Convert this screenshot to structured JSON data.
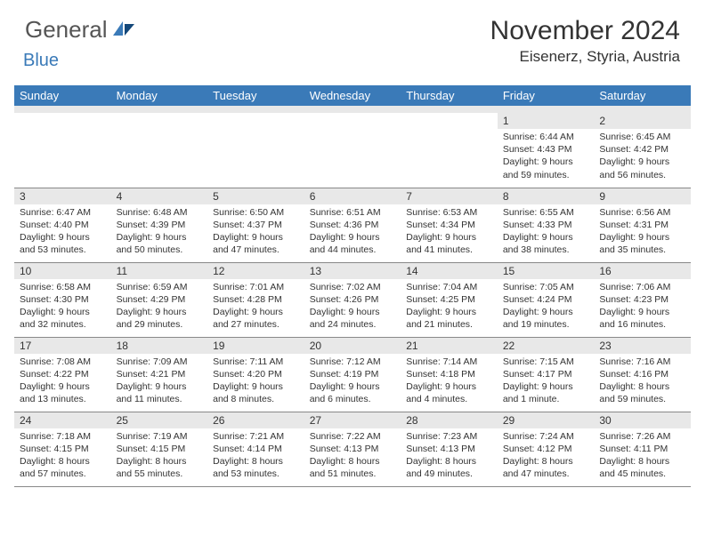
{
  "logo": {
    "general": "General",
    "blue": "Blue"
  },
  "title": "November 2024",
  "location": "Eisenerz, Styria, Austria",
  "colors": {
    "header_bg": "#3a7ab8",
    "header_fg": "#ffffff",
    "band_bg": "#e8e8e8",
    "text": "#333333",
    "border": "#888888",
    "page_bg": "#ffffff",
    "logo_blue": "#3a7ab8",
    "logo_dark": "#14487a"
  },
  "weekdays": [
    "Sunday",
    "Monday",
    "Tuesday",
    "Wednesday",
    "Thursday",
    "Friday",
    "Saturday"
  ],
  "weeks": [
    [
      {
        "num": "",
        "sunrise": "",
        "sunset": "",
        "daylight": ""
      },
      {
        "num": "",
        "sunrise": "",
        "sunset": "",
        "daylight": ""
      },
      {
        "num": "",
        "sunrise": "",
        "sunset": "",
        "daylight": ""
      },
      {
        "num": "",
        "sunrise": "",
        "sunset": "",
        "daylight": ""
      },
      {
        "num": "",
        "sunrise": "",
        "sunset": "",
        "daylight": ""
      },
      {
        "num": "1",
        "sunrise": "Sunrise: 6:44 AM",
        "sunset": "Sunset: 4:43 PM",
        "daylight": "Daylight: 9 hours and 59 minutes."
      },
      {
        "num": "2",
        "sunrise": "Sunrise: 6:45 AM",
        "sunset": "Sunset: 4:42 PM",
        "daylight": "Daylight: 9 hours and 56 minutes."
      }
    ],
    [
      {
        "num": "3",
        "sunrise": "Sunrise: 6:47 AM",
        "sunset": "Sunset: 4:40 PM",
        "daylight": "Daylight: 9 hours and 53 minutes."
      },
      {
        "num": "4",
        "sunrise": "Sunrise: 6:48 AM",
        "sunset": "Sunset: 4:39 PM",
        "daylight": "Daylight: 9 hours and 50 minutes."
      },
      {
        "num": "5",
        "sunrise": "Sunrise: 6:50 AM",
        "sunset": "Sunset: 4:37 PM",
        "daylight": "Daylight: 9 hours and 47 minutes."
      },
      {
        "num": "6",
        "sunrise": "Sunrise: 6:51 AM",
        "sunset": "Sunset: 4:36 PM",
        "daylight": "Daylight: 9 hours and 44 minutes."
      },
      {
        "num": "7",
        "sunrise": "Sunrise: 6:53 AM",
        "sunset": "Sunset: 4:34 PM",
        "daylight": "Daylight: 9 hours and 41 minutes."
      },
      {
        "num": "8",
        "sunrise": "Sunrise: 6:55 AM",
        "sunset": "Sunset: 4:33 PM",
        "daylight": "Daylight: 9 hours and 38 minutes."
      },
      {
        "num": "9",
        "sunrise": "Sunrise: 6:56 AM",
        "sunset": "Sunset: 4:31 PM",
        "daylight": "Daylight: 9 hours and 35 minutes."
      }
    ],
    [
      {
        "num": "10",
        "sunrise": "Sunrise: 6:58 AM",
        "sunset": "Sunset: 4:30 PM",
        "daylight": "Daylight: 9 hours and 32 minutes."
      },
      {
        "num": "11",
        "sunrise": "Sunrise: 6:59 AM",
        "sunset": "Sunset: 4:29 PM",
        "daylight": "Daylight: 9 hours and 29 minutes."
      },
      {
        "num": "12",
        "sunrise": "Sunrise: 7:01 AM",
        "sunset": "Sunset: 4:28 PM",
        "daylight": "Daylight: 9 hours and 27 minutes."
      },
      {
        "num": "13",
        "sunrise": "Sunrise: 7:02 AM",
        "sunset": "Sunset: 4:26 PM",
        "daylight": "Daylight: 9 hours and 24 minutes."
      },
      {
        "num": "14",
        "sunrise": "Sunrise: 7:04 AM",
        "sunset": "Sunset: 4:25 PM",
        "daylight": "Daylight: 9 hours and 21 minutes."
      },
      {
        "num": "15",
        "sunrise": "Sunrise: 7:05 AM",
        "sunset": "Sunset: 4:24 PM",
        "daylight": "Daylight: 9 hours and 19 minutes."
      },
      {
        "num": "16",
        "sunrise": "Sunrise: 7:06 AM",
        "sunset": "Sunset: 4:23 PM",
        "daylight": "Daylight: 9 hours and 16 minutes."
      }
    ],
    [
      {
        "num": "17",
        "sunrise": "Sunrise: 7:08 AM",
        "sunset": "Sunset: 4:22 PM",
        "daylight": "Daylight: 9 hours and 13 minutes."
      },
      {
        "num": "18",
        "sunrise": "Sunrise: 7:09 AM",
        "sunset": "Sunset: 4:21 PM",
        "daylight": "Daylight: 9 hours and 11 minutes."
      },
      {
        "num": "19",
        "sunrise": "Sunrise: 7:11 AM",
        "sunset": "Sunset: 4:20 PM",
        "daylight": "Daylight: 9 hours and 8 minutes."
      },
      {
        "num": "20",
        "sunrise": "Sunrise: 7:12 AM",
        "sunset": "Sunset: 4:19 PM",
        "daylight": "Daylight: 9 hours and 6 minutes."
      },
      {
        "num": "21",
        "sunrise": "Sunrise: 7:14 AM",
        "sunset": "Sunset: 4:18 PM",
        "daylight": "Daylight: 9 hours and 4 minutes."
      },
      {
        "num": "22",
        "sunrise": "Sunrise: 7:15 AM",
        "sunset": "Sunset: 4:17 PM",
        "daylight": "Daylight: 9 hours and 1 minute."
      },
      {
        "num": "23",
        "sunrise": "Sunrise: 7:16 AM",
        "sunset": "Sunset: 4:16 PM",
        "daylight": "Daylight: 8 hours and 59 minutes."
      }
    ],
    [
      {
        "num": "24",
        "sunrise": "Sunrise: 7:18 AM",
        "sunset": "Sunset: 4:15 PM",
        "daylight": "Daylight: 8 hours and 57 minutes."
      },
      {
        "num": "25",
        "sunrise": "Sunrise: 7:19 AM",
        "sunset": "Sunset: 4:15 PM",
        "daylight": "Daylight: 8 hours and 55 minutes."
      },
      {
        "num": "26",
        "sunrise": "Sunrise: 7:21 AM",
        "sunset": "Sunset: 4:14 PM",
        "daylight": "Daylight: 8 hours and 53 minutes."
      },
      {
        "num": "27",
        "sunrise": "Sunrise: 7:22 AM",
        "sunset": "Sunset: 4:13 PM",
        "daylight": "Daylight: 8 hours and 51 minutes."
      },
      {
        "num": "28",
        "sunrise": "Sunrise: 7:23 AM",
        "sunset": "Sunset: 4:13 PM",
        "daylight": "Daylight: 8 hours and 49 minutes."
      },
      {
        "num": "29",
        "sunrise": "Sunrise: 7:24 AM",
        "sunset": "Sunset: 4:12 PM",
        "daylight": "Daylight: 8 hours and 47 minutes."
      },
      {
        "num": "30",
        "sunrise": "Sunrise: 7:26 AM",
        "sunset": "Sunset: 4:11 PM",
        "daylight": "Daylight: 8 hours and 45 minutes."
      }
    ]
  ]
}
